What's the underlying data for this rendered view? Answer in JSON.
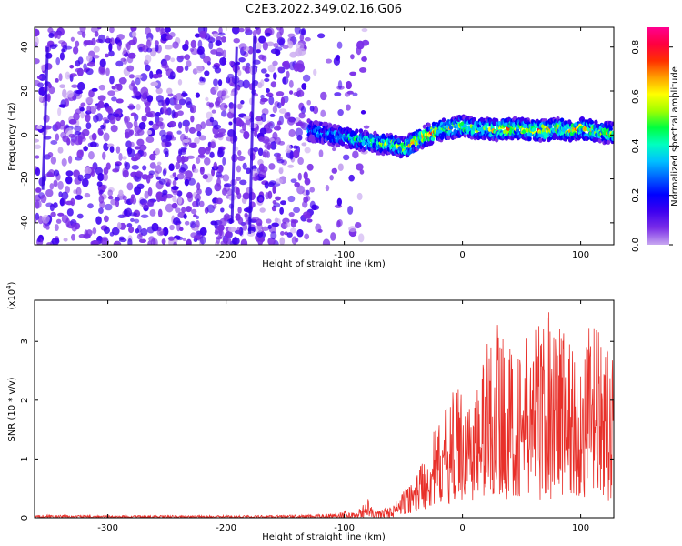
{
  "figure_title": "C2E3.2022.349.02.16.G06",
  "chart_data": [
    {
      "type": "heatmap",
      "xlabel": "Height of straight line (km)",
      "ylabel": "Frequency (Hz)",
      "xlim": [
        -362,
        128
      ],
      "ylim": [
        -50,
        49
      ],
      "xticks": [
        -300,
        -200,
        -100,
        0,
        100
      ],
      "yticks": [
        -40,
        -20,
        0,
        20,
        40
      ],
      "grid": false,
      "colorbar": {
        "label": "Normalized spectral amplitude",
        "range": [
          0.0,
          0.88
        ],
        "ticks": [
          "0.0",
          "0.2",
          "0.4",
          "0.6",
          "0.8"
        ],
        "colormap": [
          "#c8a8f0",
          "#7a2ee8",
          "#3d00f0",
          "#0000ff",
          "#0060ff",
          "#00c0ff",
          "#00ffc0",
          "#00ff40",
          "#a0ff00",
          "#ffff00",
          "#ffa000",
          "#ff3000",
          "#ff0040",
          "#ff0090"
        ]
      },
      "noise_region_xlim": [
        -362,
        -80
      ],
      "ridge": {
        "x": [
          -130,
          -110,
          -90,
          -70,
          -60,
          -50,
          -40,
          -30,
          -20,
          -10,
          0,
          10,
          20,
          30,
          40,
          50,
          60,
          70,
          80,
          90,
          100,
          110,
          120
        ],
        "frequency": [
          2,
          0,
          -2,
          -4,
          -4,
          -6,
          -3,
          0,
          2,
          3,
          4,
          3,
          3,
          2,
          3,
          3,
          2,
          2,
          3,
          2,
          3,
          2,
          1
        ],
        "amplitude": [
          0.3,
          0.35,
          0.4,
          0.45,
          0.5,
          0.55,
          0.6,
          0.7,
          0.6,
          0.55,
          0.6,
          0.55,
          0.55,
          0.6,
          0.6,
          0.55,
          0.6,
          0.65,
          0.6,
          0.6,
          0.6,
          0.6,
          0.55
        ]
      }
    },
    {
      "type": "line",
      "xlabel": "Height of straight line (km)",
      "ylabel": "SNR (10 * v/v)",
      "y_multiplier_label": "(x10",
      "y_multiplier_exp": "4",
      "xlim": [
        -362,
        128
      ],
      "ylim": [
        0,
        3.7
      ],
      "xticks": [
        -300,
        -200,
        -100,
        0,
        100
      ],
      "yticks": [
        0,
        1,
        2,
        3
      ],
      "grid": false,
      "series": [
        {
          "color": "#e8302a",
          "envelope": {
            "x": [
              -362,
              -300,
              -200,
              -130,
              -110,
              -100,
              -90,
              -80,
              -75,
              -60,
              -50,
              -40,
              -30,
              -20,
              -10,
              0,
              10,
              20,
              30,
              40,
              50,
              60,
              70,
              80,
              90,
              100,
              110,
              120,
              128
            ],
            "upper": [
              0.05,
              0.04,
              0.04,
              0.05,
              0.08,
              0.12,
              0.08,
              0.33,
              0.1,
              0.2,
              0.45,
              0.7,
              1.3,
              1.6,
              2.1,
              2.3,
              2.0,
              3.1,
              3.4,
              2.9,
              3.0,
              3.3,
              3.6,
              3.7,
              3.2,
              2.7,
              3.5,
              2.9,
              2.7
            ],
            "lower": [
              0.0,
              0.0,
              0.0,
              0.0,
              0.0,
              0.0,
              0.0,
              0.0,
              0.0,
              0.0,
              0.05,
              0.1,
              0.15,
              0.2,
              0.25,
              0.3,
              0.3,
              0.3,
              0.35,
              0.3,
              0.35,
              0.3,
              0.3,
              0.35,
              0.3,
              0.3,
              0.3,
              0.3,
              0.3
            ]
          }
        }
      ]
    }
  ]
}
